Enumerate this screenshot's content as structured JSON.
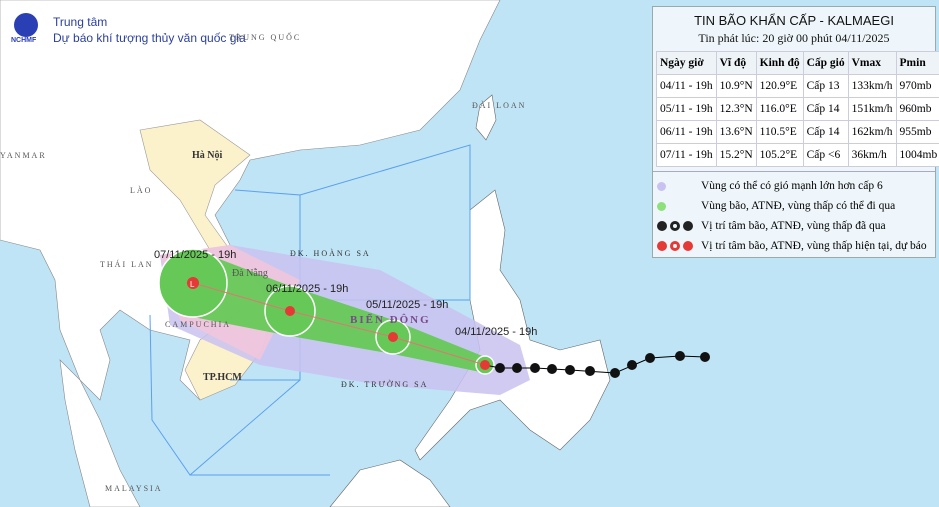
{
  "header": {
    "org_line1": "Trung tâm",
    "org_line2": "Dự báo khí tượng thủy văn quốc gia",
    "logo_text": "NCHMF"
  },
  "panel": {
    "title": "TIN BÃO KHẨN CẤP - KALMAEGI",
    "issued": "Tin phát lúc: 20 giờ 00 phút 04/11/2025",
    "columns": [
      "Ngày giờ",
      "Vĩ độ",
      "Kinh độ",
      "Cấp gió",
      "Vmax",
      "Pmin"
    ],
    "rows": [
      [
        "04/11 - 19h",
        "10.9°N",
        "120.9°E",
        "Cấp 13",
        "133km/h",
        "970mb"
      ],
      [
        "05/11 - 19h",
        "12.3°N",
        "116.0°E",
        "Cấp 14",
        "151km/h",
        "960mb"
      ],
      [
        "06/11 - 19h",
        "13.6°N",
        "110.5°E",
        "Cấp 14",
        "162km/h",
        "955mb"
      ],
      [
        "07/11 - 19h",
        "15.2°N",
        "105.2°E",
        "Cấp <6",
        "36km/h",
        "1004mb"
      ]
    ],
    "legend": [
      {
        "label": "Vùng có thể có gió mạnh lớn hơn cấp 6",
        "color": "#c9c2f0"
      },
      {
        "label": "Vùng bão, ATNĐ, vùng thấp có thể đi qua",
        "color": "#8ee07a"
      },
      {
        "label": "Vị trí tâm bão, ATNĐ, vùng thấp đã qua",
        "color": "#222222"
      },
      {
        "label": "Vị trí tâm bão, ATNĐ, vùng thấp hiện tại, dự báo",
        "color": "#e53935"
      }
    ]
  },
  "map": {
    "countries": [
      "TRUNG QUỐC",
      "YANMAR",
      "LÀO",
      "THÁI LAN",
      "CAMPUCHIA",
      "MALAYSIA",
      "ĐÀI LOAN"
    ],
    "cities": [
      "Hà Nội",
      "Đà Nẵng",
      "TP.HCM"
    ],
    "sea_labels": [
      "ĐK. HOÀNG SA",
      "ĐK. TRƯỜNG SA",
      "BIỂN ĐÔNG"
    ],
    "forecast_points": [
      {
        "label": "04/11/2025 - 19h",
        "lat": 10.9,
        "lon": 120.9,
        "type": "storm"
      },
      {
        "label": "05/11/2025 - 19h",
        "lat": 12.3,
        "lon": 116.0,
        "type": "storm"
      },
      {
        "label": "06/11/2025 - 19h",
        "lat": 13.6,
        "lon": 110.5,
        "type": "storm"
      },
      {
        "label": "07/11/2025 - 19h",
        "lat": 15.2,
        "lon": 105.2,
        "type": "low"
      }
    ]
  }
}
